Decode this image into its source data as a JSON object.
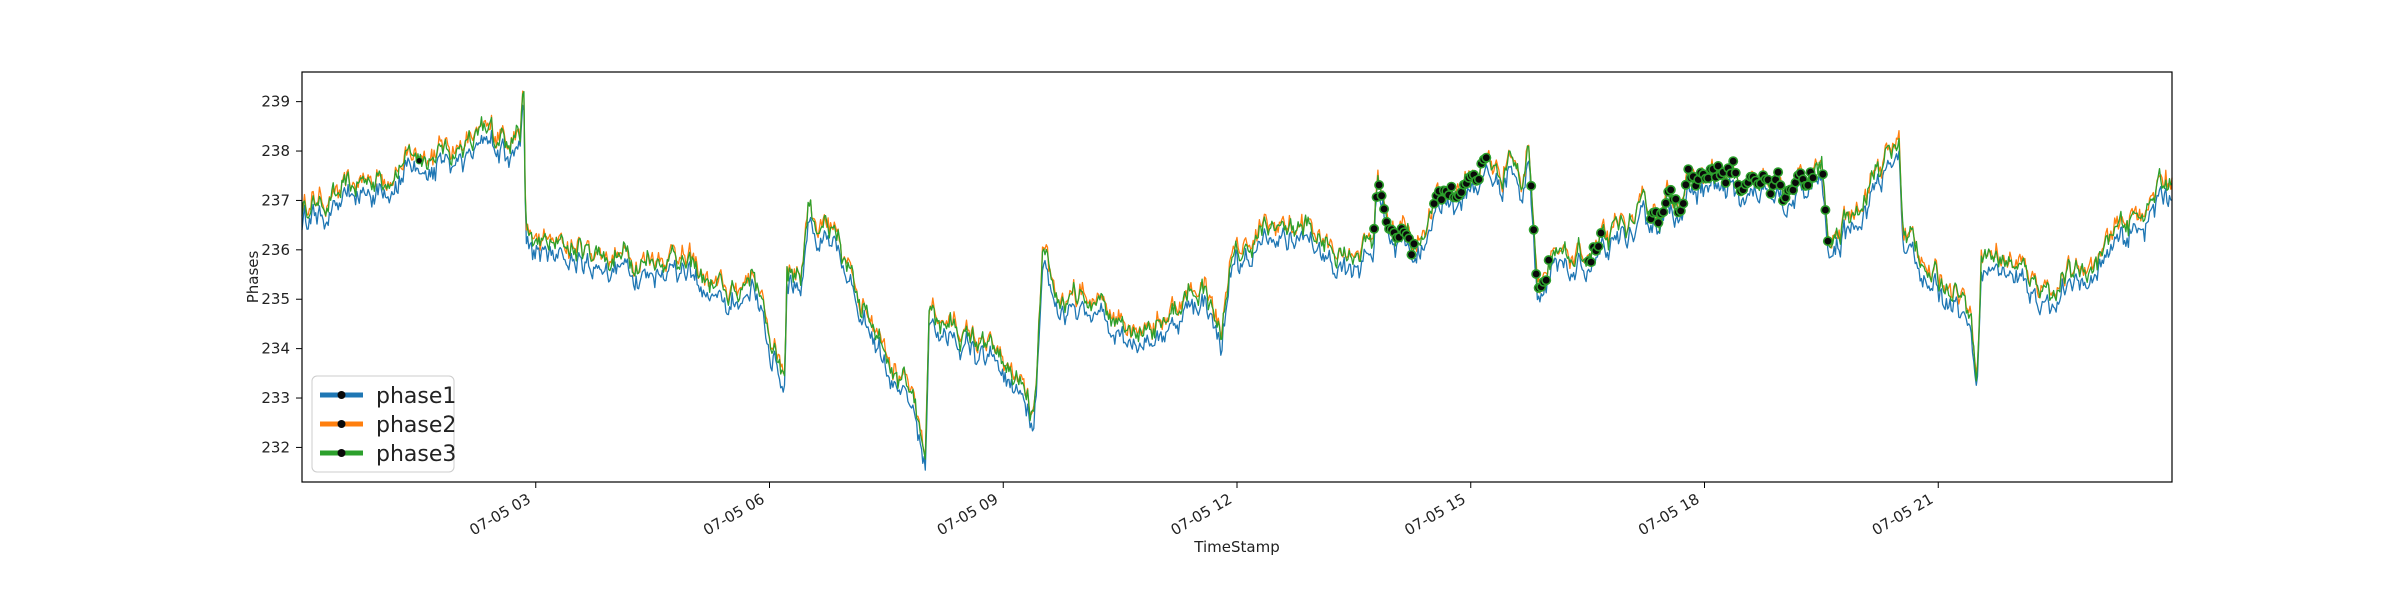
{
  "chart_data": {
    "type": "line",
    "xlabel": "TimeStamp",
    "ylabel": "Phases",
    "x_range_hours": [
      0,
      24
    ],
    "ylim": [
      231.3,
      239.6
    ],
    "x_ticks": [
      {
        "hour": 3,
        "label": "07-05 03"
      },
      {
        "hour": 6,
        "label": "07-05 06"
      },
      {
        "hour": 9,
        "label": "07-05 09"
      },
      {
        "hour": 12,
        "label": "07-05 12"
      },
      {
        "hour": 15,
        "label": "07-05 15"
      },
      {
        "hour": 18,
        "label": "07-05 18"
      },
      {
        "hour": 21,
        "label": "07-05 21"
      }
    ],
    "y_ticks": [
      232,
      233,
      234,
      235,
      236,
      237,
      238,
      239
    ],
    "legend_position": "lower-left",
    "grid": false,
    "series": [
      {
        "name": "phase1",
        "color": "#1f77b4",
        "offset": -0.25
      },
      {
        "name": "phase2",
        "color": "#ff7f0e",
        "offset": 0.05
      },
      {
        "name": "phase3",
        "color": "#2ca02c",
        "offset": 0.0
      }
    ],
    "profile": [
      [
        0.0,
        236.9
      ],
      [
        0.5,
        237.1
      ],
      [
        1.0,
        237.5
      ],
      [
        1.5,
        237.9
      ],
      [
        2.0,
        238.1
      ],
      [
        2.5,
        238.3
      ],
      [
        2.8,
        238.5
      ],
      [
        2.85,
        239.2
      ],
      [
        2.87,
        236.3
      ],
      [
        3.0,
        236.1
      ],
      [
        3.5,
        236.0
      ],
      [
        4.0,
        235.9
      ],
      [
        4.5,
        235.8
      ],
      [
        4.8,
        236.0
      ],
      [
        5.0,
        235.6
      ],
      [
        5.3,
        235.2
      ],
      [
        5.5,
        235.0
      ],
      [
        5.8,
        235.6
      ],
      [
        6.0,
        234.2
      ],
      [
        6.2,
        233.5
      ],
      [
        6.22,
        235.8
      ],
      [
        6.4,
        235.5
      ],
      [
        6.5,
        237.0
      ],
      [
        6.6,
        236.6
      ],
      [
        6.8,
        236.2
      ],
      [
        7.0,
        235.5
      ],
      [
        7.3,
        234.8
      ],
      [
        7.6,
        233.8
      ],
      [
        7.9,
        232.5
      ],
      [
        8.0,
        231.8
      ],
      [
        8.05,
        234.8
      ],
      [
        8.3,
        234.5
      ],
      [
        8.6,
        234.2
      ],
      [
        8.9,
        233.8
      ],
      [
        9.2,
        233.3
      ],
      [
        9.4,
        232.4
      ],
      [
        9.5,
        235.6
      ],
      [
        9.7,
        235.0
      ],
      [
        10.0,
        234.9
      ],
      [
        10.3,
        234.8
      ],
      [
        10.6,
        234.6
      ],
      [
        11.0,
        234.5
      ],
      [
        11.3,
        235.0
      ],
      [
        11.6,
        235.3
      ],
      [
        11.8,
        234.2
      ],
      [
        11.9,
        235.7
      ],
      [
        12.3,
        236.3
      ],
      [
        12.6,
        236.5
      ],
      [
        12.9,
        236.4
      ],
      [
        13.2,
        236.0
      ],
      [
        13.5,
        236.0
      ],
      [
        13.75,
        236.2
      ],
      [
        13.8,
        237.5
      ],
      [
        14.0,
        236.5
      ],
      [
        14.3,
        236.1
      ],
      [
        14.5,
        236.8
      ],
      [
        14.7,
        237.2
      ],
      [
        15.0,
        237.4
      ],
      [
        15.2,
        237.8
      ],
      [
        15.4,
        237.5
      ],
      [
        15.5,
        238.1
      ],
      [
        15.65,
        237.3
      ],
      [
        15.75,
        238.2
      ],
      [
        15.85,
        235.5
      ],
      [
        16.2,
        235.7
      ],
      [
        16.5,
        235.9
      ],
      [
        16.8,
        236.1
      ],
      [
        17.0,
        236.5
      ],
      [
        17.4,
        236.8
      ],
      [
        17.7,
        237.2
      ],
      [
        18.0,
        237.5
      ],
      [
        18.3,
        237.4
      ],
      [
        18.6,
        237.2
      ],
      [
        19.0,
        237.1
      ],
      [
        19.3,
        237.4
      ],
      [
        19.5,
        237.6
      ],
      [
        19.6,
        236.0
      ],
      [
        19.8,
        236.5
      ],
      [
        20.2,
        237.6
      ],
      [
        20.4,
        237.9
      ],
      [
        20.5,
        238.2
      ],
      [
        20.55,
        236.3
      ],
      [
        20.8,
        235.9
      ],
      [
        21.0,
        235.2
      ],
      [
        21.2,
        235.4
      ],
      [
        21.4,
        234.8
      ],
      [
        21.5,
        233.6
      ],
      [
        21.55,
        236.0
      ],
      [
        21.9,
        235.8
      ],
      [
        22.2,
        235.4
      ],
      [
        22.5,
        235.2
      ],
      [
        23.0,
        235.8
      ],
      [
        23.5,
        236.6
      ],
      [
        24.0,
        237.5
      ]
    ],
    "marker_segments": [
      [
        13.75,
        14.3
      ],
      [
        14.5,
        15.2
      ],
      [
        15.75,
        16.0
      ],
      [
        16.5,
        16.7
      ],
      [
        17.3,
        19.4
      ],
      [
        19.5,
        19.6
      ]
    ]
  }
}
